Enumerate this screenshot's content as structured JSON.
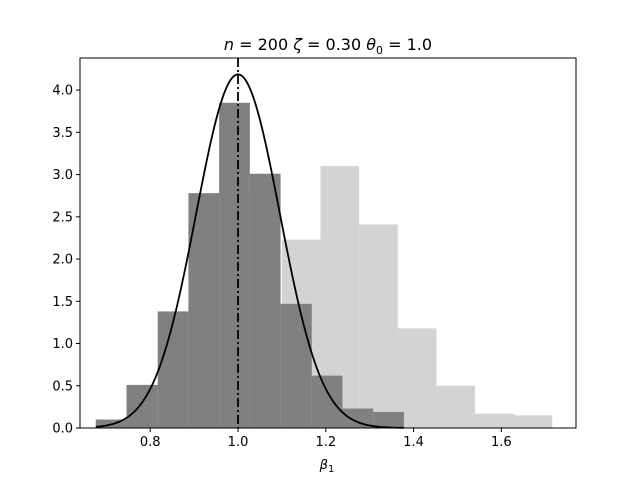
{
  "chart_data": {
    "type": "bar",
    "title_parts": {
      "n_symbol": "n",
      "eq1": " = 200 ",
      "zeta_symbol": "ζ",
      "eq2": " = 0.30 ",
      "theta_symbol": "θ",
      "theta_sub": "0",
      "eq3": " = 1.0"
    },
    "xlabel_parts": {
      "symbol": "β",
      "sub": "1"
    },
    "xlim": [
      0.64,
      1.77
    ],
    "ylim": [
      0,
      4.38
    ],
    "xticks": [
      "0.8",
      "1.0",
      "1.2",
      "1.4",
      "1.6"
    ],
    "yticks": [
      "0.0",
      "0.5",
      "1.0",
      "1.5",
      "2.0",
      "2.5",
      "3.0",
      "3.5",
      "4.0"
    ],
    "grid": false,
    "series": [
      {
        "color": "#d3d3d3",
        "bins": [
          {
            "x0": 0.676,
            "x1": 0.765,
            "height": 0.1
          },
          {
            "x0": 0.765,
            "x1": 0.854,
            "height": 0.51
          },
          {
            "x0": 0.854,
            "x1": 0.944,
            "height": 1.38
          },
          {
            "x0": 0.944,
            "x1": 1.033,
            "height": 2.78
          },
          {
            "x0": 1.1,
            "x1": 1.188,
            "height": 2.23
          },
          {
            "x0": 1.188,
            "x1": 1.276,
            "height": 3.1
          },
          {
            "x0": 1.276,
            "x1": 1.364,
            "height": 2.41
          },
          {
            "x0": 1.364,
            "x1": 1.452,
            "height": 1.18
          },
          {
            "x0": 1.452,
            "x1": 1.54,
            "height": 0.5
          },
          {
            "x0": 1.54,
            "x1": 1.628,
            "height": 0.17
          },
          {
            "x0": 1.628,
            "x1": 1.716,
            "height": 0.15
          }
        ]
      },
      {
        "color": "#808080",
        "bins": [
          {
            "x0": 0.676,
            "x1": 0.746,
            "height": 0.1
          },
          {
            "x0": 0.746,
            "x1": 0.817,
            "height": 0.51
          },
          {
            "x0": 0.817,
            "x1": 0.887,
            "height": 1.38
          },
          {
            "x0": 0.887,
            "x1": 0.957,
            "height": 2.78
          },
          {
            "x0": 0.957,
            "x1": 1.027,
            "height": 3.85
          },
          {
            "x0": 1.027,
            "x1": 1.097,
            "height": 3.01
          },
          {
            "x0": 1.097,
            "x1": 1.168,
            "height": 1.47
          },
          {
            "x0": 1.168,
            "x1": 1.238,
            "height": 0.62
          },
          {
            "x0": 1.238,
            "x1": 1.308,
            "height": 0.23
          },
          {
            "x0": 1.308,
            "x1": 1.378,
            "height": 0.19
          }
        ]
      }
    ],
    "density_curve": {
      "color": "#000000",
      "mean": 1.0,
      "sd": 0.0953,
      "x_range": [
        0.676,
        1.378
      ]
    },
    "vline": {
      "x": 1.0,
      "style": "dash-dot",
      "color": "#000000"
    }
  }
}
